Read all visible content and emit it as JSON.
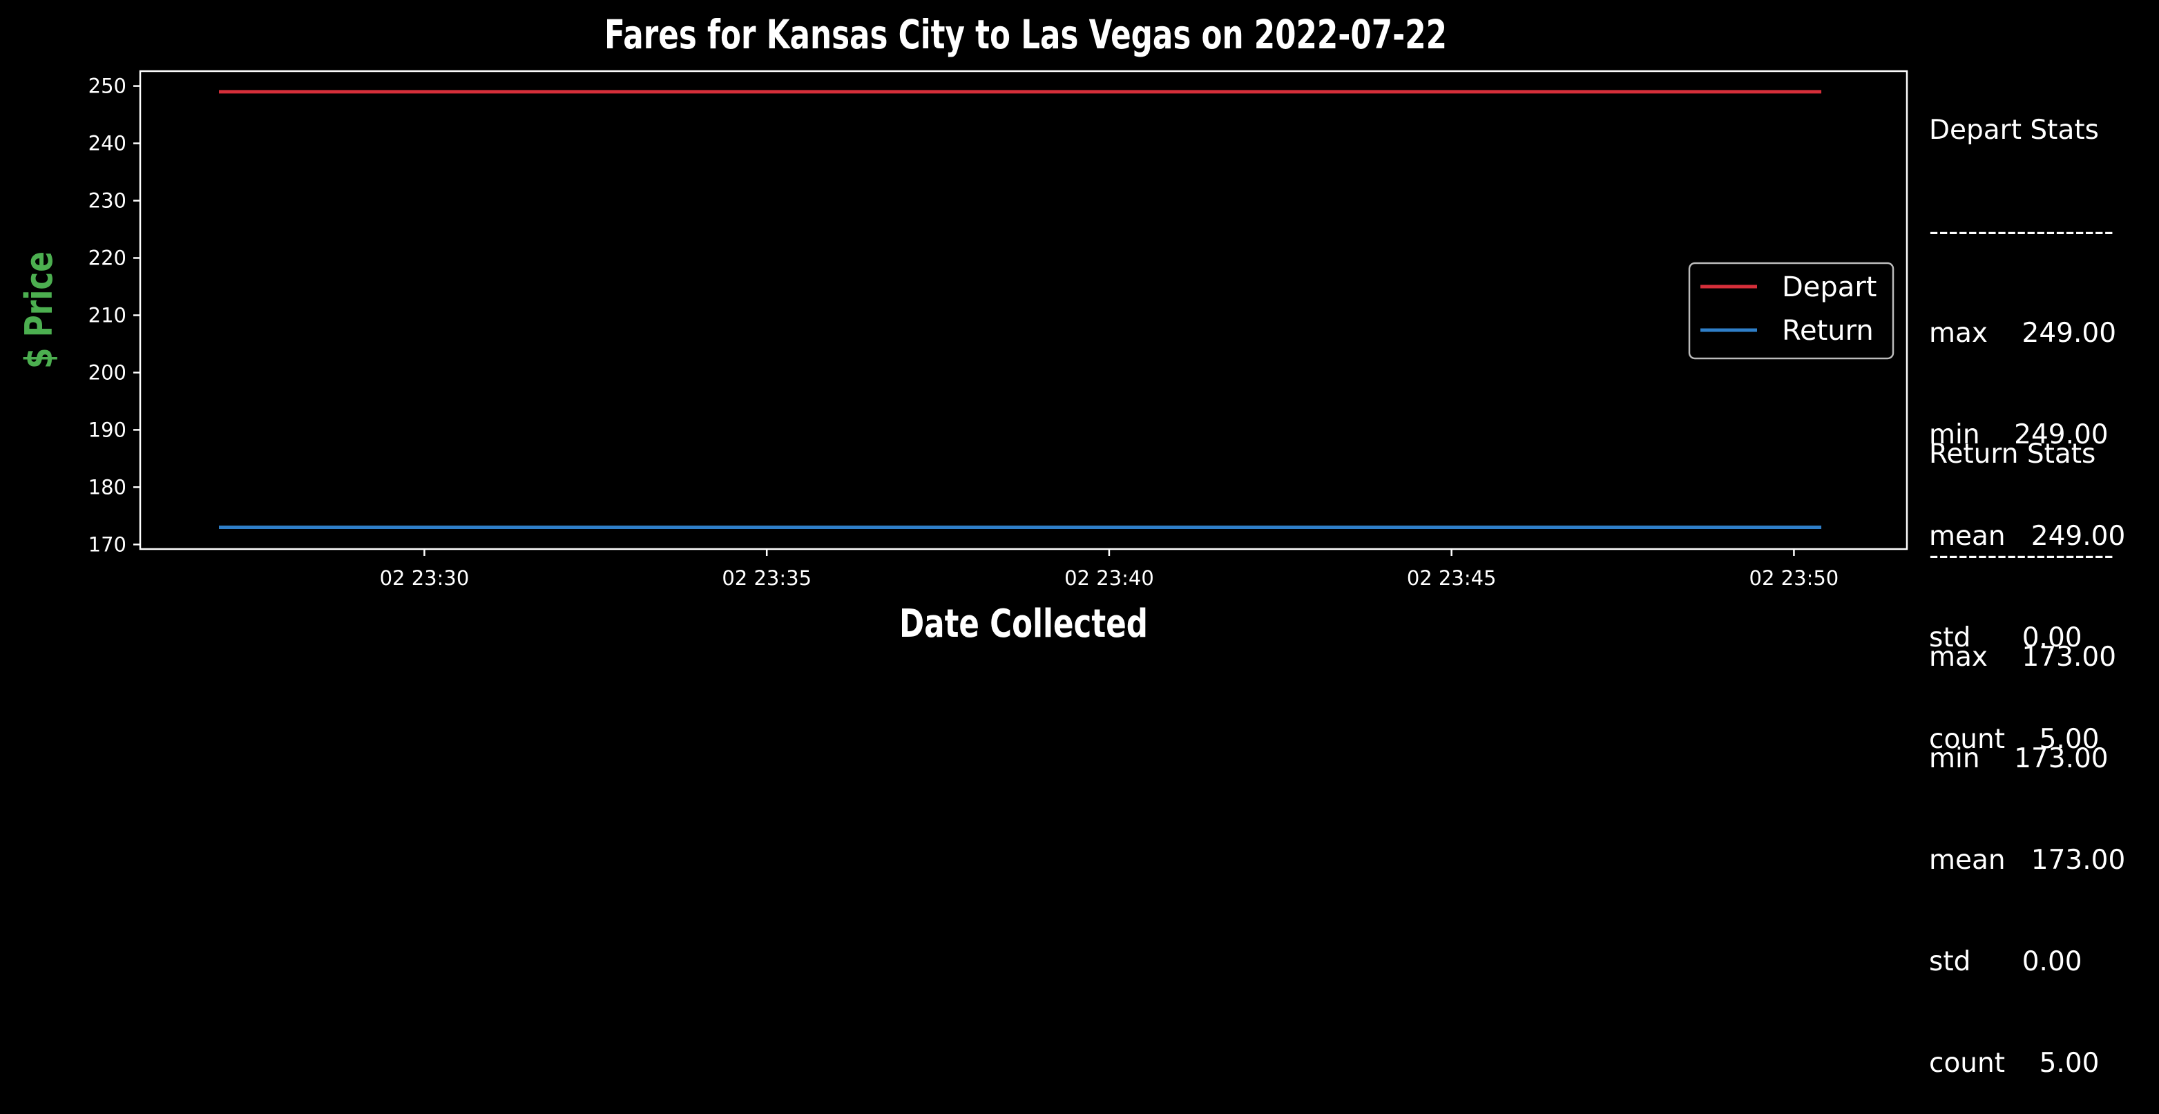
{
  "chart_data": {
    "type": "line",
    "title": "Fares for Kansas City to Las Vegas on 2022-07-22",
    "xlabel": "Date Collected",
    "ylabel": "$ Price",
    "x_tick_labels": [
      "02 23:30",
      "02 23:35",
      "02 23:40",
      "02 23:45",
      "02 23:50"
    ],
    "x_tick_minutes": [
      30,
      35,
      40,
      45,
      50
    ],
    "xlim_minutes": [
      25.85,
      51.65
    ],
    "y_ticks": [
      170,
      180,
      190,
      200,
      210,
      220,
      230,
      240,
      250
    ],
    "ylim": [
      169.2,
      252.6
    ],
    "series": [
      {
        "name": "Depart",
        "color": "#d62f3a",
        "x_minutes": [
          27.0,
          32.8,
          38.6,
          44.5,
          50.4
        ],
        "values": [
          249,
          249,
          249,
          249,
          249
        ]
      },
      {
        "name": "Return",
        "color": "#2f7fc9",
        "x_minutes": [
          27.0,
          32.8,
          38.6,
          44.5,
          50.4
        ],
        "values": [
          173,
          173,
          173,
          173,
          173
        ]
      }
    ],
    "legend_position": "center-right",
    "grid": false,
    "ylabel_color": "#4caf50"
  },
  "stats": {
    "depart": {
      "heading": "Depart Stats",
      "divider": "-------------------",
      "lines": [
        "max    249.00",
        "min    249.00",
        "mean   249.00",
        "std      0.00",
        "count    5.00"
      ]
    },
    "return": {
      "heading": "Return Stats",
      "divider": "-------------------",
      "lines": [
        "max    173.00",
        "min    173.00",
        "mean   173.00",
        "std      0.00",
        "count    5.00"
      ]
    }
  }
}
